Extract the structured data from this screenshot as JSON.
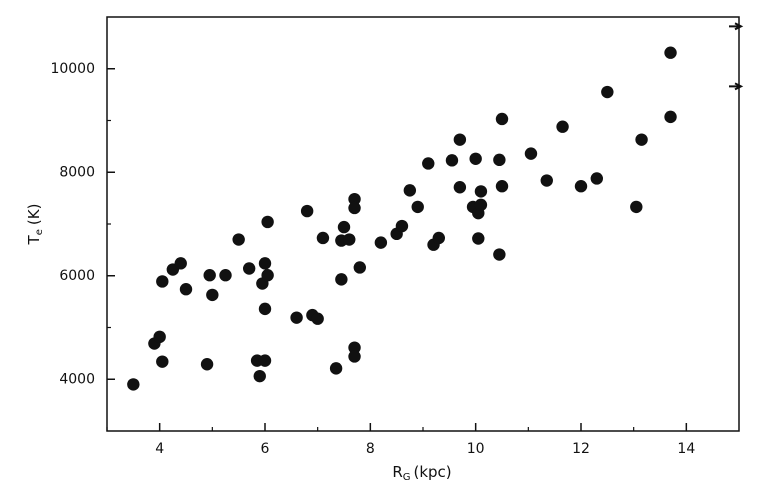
{
  "chart_data": {
    "type": "scatter",
    "xlabel": {
      "main": "R",
      "sub": "G",
      "unit": "(kpc)"
    },
    "ylabel": {
      "main": "T",
      "sub": "e",
      "unit": "(K)"
    },
    "xlim": [
      3,
      15
    ],
    "xticks": [
      4,
      6,
      8,
      10,
      12,
      14
    ],
    "xminorticks": [
      3,
      5,
      7,
      9,
      11,
      13
    ],
    "ylim": [
      3000,
      11000
    ],
    "yticks": [
      4000,
      6000,
      8000,
      10000
    ],
    "yminorticks": [
      5000,
      7000,
      9000
    ],
    "color": "#111111",
    "x": [
      3.5,
      3.9,
      4.0,
      4.05,
      4.05,
      4.25,
      4.4,
      4.5,
      4.95,
      4.9,
      5.0,
      5.25,
      5.5,
      5.7,
      5.85,
      5.9,
      5.95,
      6.0,
      6.05,
      6.05,
      6.0,
      6.0,
      6.6,
      6.8,
      6.9,
      7.0,
      7.1,
      7.35,
      7.45,
      7.45,
      7.5,
      7.6,
      7.7,
      7.7,
      7.7,
      7.7,
      7.8,
      8.2,
      8.5,
      8.6,
      8.75,
      8.9,
      9.1,
      9.2,
      9.3,
      9.55,
      9.7,
      9.7,
      9.95,
      10.0,
      10.05,
      10.05,
      10.1,
      10.1,
      10.45,
      10.45,
      10.5,
      10.5,
      11.05,
      11.35,
      11.65,
      12.0,
      12.3,
      12.5,
      13.05,
      13.15,
      13.7,
      13.7
    ],
    "y": [
      3900,
      4690,
      4820,
      4340,
      5890,
      6120,
      6240,
      5740,
      6010,
      4290,
      5630,
      6010,
      6700,
      6140,
      4360,
      4060,
      5850,
      6240,
      6010,
      7040,
      5360,
      4360,
      5190,
      7250,
      5240,
      5170,
      6730,
      4210,
      5930,
      6680,
      6940,
      6700,
      7480,
      7310,
      4610,
      4440,
      6160,
      6640,
      6810,
      6960,
      7650,
      7330,
      8170,
      6600,
      6730,
      8230,
      8630,
      7710,
      7330,
      8260,
      6720,
      7210,
      7630,
      7370,
      8240,
      6410,
      9030,
      7730,
      8360,
      7840,
      8880,
      7730,
      7880,
      9550,
      7330,
      8630,
      10310,
      9070
    ],
    "arrows": [
      10820,
      9660
    ]
  }
}
